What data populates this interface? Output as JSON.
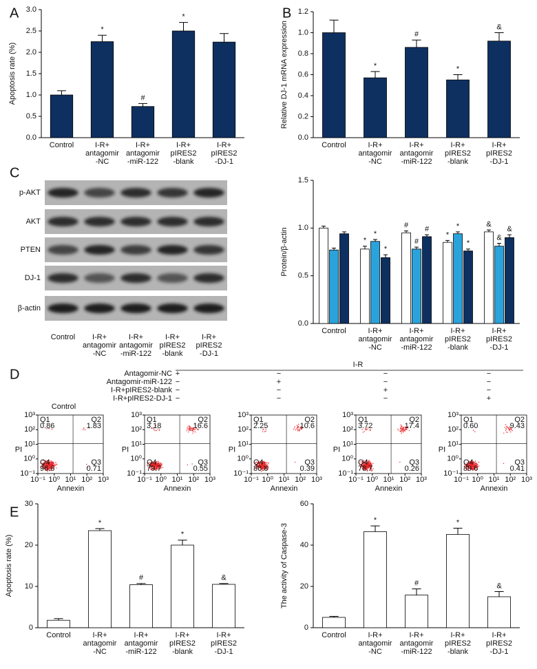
{
  "chart_data": [
    {
      "type": "bar",
      "panel_label": "A",
      "ylabel": "Apoptosis rate (%)",
      "categories": [
        "Control",
        "I-R+\nantagomir\n-NC",
        "I-R+\nantagomir\n-miR-122",
        "I-R+\npIRES2\n-blank",
        "I-R+\npIRES2\n-DJ-1"
      ],
      "values": [
        1.0,
        2.25,
        0.73,
        2.5,
        2.24
      ],
      "errors": [
        0.1,
        0.15,
        0.07,
        0.2,
        0.2
      ],
      "annotations": [
        null,
        "*",
        "#",
        "*",
        null
      ],
      "color": "#0e3060",
      "ylim": [
        0,
        3
      ],
      "yticks": [
        {
          "value": 0,
          "label": "0.0"
        },
        0.5,
        {
          "value": 1,
          "label": "1.0"
        },
        1.5,
        {
          "value": 2,
          "label": "2.0"
        },
        2.5,
        {
          "value": 3,
          "label": "3.0"
        }
      ]
    },
    {
      "type": "bar",
      "panel_label": "B",
      "ylabel": "Relative DJ-1 mRNA expression",
      "categories": [
        "Control",
        "I-R+\nantagomir\n-NC",
        "I-R+\nantagomir\n-miR-122",
        "I-R+\npIRES2\n-blank",
        "I-R+\npIRES2\n-DJ-1"
      ],
      "values": [
        1.0,
        0.57,
        0.86,
        0.55,
        0.92
      ],
      "errors": [
        0.12,
        0.06,
        0.07,
        0.05,
        0.08
      ],
      "annotations": [
        null,
        "*",
        "#",
        "*",
        "&"
      ],
      "color": "#0e3060",
      "ylim": [
        0,
        1.2
      ],
      "yticks": [
        {
          "value": 0,
          "label": "0.0"
        },
        0.2,
        0.4,
        0.6,
        0.8,
        {
          "value": 1,
          "label": "1.0"
        },
        1.2
      ]
    },
    {
      "type": "blot",
      "panel_label": "C",
      "rows": [
        "p-AKT",
        "AKT",
        "PTEN",
        "DJ-1",
        "β-actin"
      ],
      "categories": [
        "Control",
        "I-R+\nantagomir\n-NC",
        "I-R+\nantagomir\n-miR-122",
        "I-R+\npIRES2\n-blank",
        "I-R+\npIRES2\n-DJ-1"
      ]
    },
    {
      "type": "bar",
      "ylabel": "Protein/β-actin",
      "categories": [
        "Control",
        "I-R+\nantagomir\n-NC",
        "I-R+\nantagomir\n-miR-122",
        "I-R+\npIRES2\n-blank",
        "I-R+\npIRES2\n-DJ-1"
      ],
      "series": [
        {
          "color": "#ffffff",
          "values": [
            1.0,
            0.78,
            0.95,
            0.85,
            0.96
          ],
          "errors": [
            0.02,
            0.03,
            0.02,
            0.02,
            0.02
          ],
          "annotations": [
            null,
            "*",
            "#",
            "*",
            "&"
          ]
        },
        {
          "color": "#2aa3dc",
          "values": [
            0.77,
            0.86,
            0.78,
            0.94,
            0.81
          ],
          "errors": [
            0.02,
            0.02,
            0.02,
            0.02,
            0.03
          ],
          "annotations": [
            null,
            "*",
            "#",
            "*",
            "&"
          ]
        },
        {
          "color": "#0e3060",
          "values": [
            0.94,
            0.69,
            0.91,
            0.76,
            0.9
          ],
          "errors": [
            0.02,
            0.03,
            0.02,
            0.02,
            0.03
          ],
          "annotations": [
            null,
            "*",
            "#",
            "*",
            "&"
          ]
        }
      ],
      "ylim": [
        0,
        1.5
      ],
      "yticks": [
        {
          "value": 0,
          "label": "0.0"
        },
        0.5,
        {
          "value": 1,
          "label": "1.0"
        },
        1.5
      ]
    },
    {
      "type": "flow",
      "panel_label": "D",
      "log_scale": true,
      "treatment_group": "I-R",
      "treatments": [
        {
          "name": "Antagomir-NC",
          "marks": [
            "+",
            "−",
            "−",
            "−"
          ]
        },
        {
          "name": "Antagomir-miR-122",
          "marks": [
            "−",
            "+",
            "−",
            "−"
          ]
        },
        {
          "name": "I-R+pIRES2-blank",
          "marks": [
            "−",
            "−",
            "+",
            "−"
          ]
        },
        {
          "name": "I-R+pIRES2-DJ-1",
          "marks": [
            "−",
            "−",
            "−",
            "+"
          ]
        }
      ],
      "control_title": "Control",
      "xlabel": "Annexin",
      "ylabel": "PI",
      "quadrant_names": [
        "Q1",
        "Q2",
        "Q3",
        "Q4"
      ],
      "xlim": [
        0.1,
        1000
      ],
      "ylim": [
        0.1,
        1000
      ],
      "xticks": [
        {
          "value": 0.1,
          "label": "10⁻¹"
        },
        {
          "value": 1,
          "label": "10⁰"
        },
        {
          "value": 10,
          "label": "10¹"
        },
        {
          "value": 100,
          "label": "10²"
        },
        {
          "value": 1000,
          "label": "10³"
        }
      ],
      "yticks": [
        {
          "value": 0.1,
          "label": "10⁻¹"
        },
        {
          "value": 1,
          "label": "10⁰"
        },
        {
          "value": 10,
          "label": "10¹"
        },
        {
          "value": 100,
          "label": "10²"
        },
        {
          "value": 1000,
          "label": "10³"
        }
      ],
      "color": "#e8262a",
      "panels": [
        {
          "values": [
            0.86,
            1.83,
            0.71,
            96.6
          ]
        },
        {
          "values": [
            3.18,
            16.6,
            0.55,
            79.7
          ]
        },
        {
          "values": [
            2.25,
            10.6,
            0.39,
            86.8
          ]
        },
        {
          "values": [
            3.72,
            17.4,
            0.26,
            78.7
          ]
        },
        {
          "values": [
            0.6,
            9.43,
            0.41,
            89.6
          ],
          "value_labels": [
            "0.60",
            "9.43",
            "0.41",
            "89.6"
          ]
        }
      ]
    },
    {
      "type": "bar",
      "panel_label": "E",
      "ylabel": "Apoptosis rate (%)",
      "categories": [
        "Control",
        "I-R+\nantagomir\n-NC",
        "I-R+\nantagomir\n-miR-122",
        "I-R+\npIRES2\n-blank",
        "I-R+\npIRES2\n-DJ-1"
      ],
      "values": [
        1.8,
        23.5,
        10.4,
        20.0,
        10.5
      ],
      "errors": [
        0.4,
        0.5,
        0.3,
        1.2,
        0.2
      ],
      "annotations": [
        null,
        "*",
        "#",
        "*",
        "&"
      ],
      "color": "#ffffff",
      "ylim": [
        0,
        30
      ],
      "yticks": [
        0,
        10,
        20,
        30
      ]
    },
    {
      "type": "bar",
      "ylabel": "The activity of Caspase-3",
      "categories": [
        "Control",
        "I-R+\nantagomir\n-NC",
        "I-R+\nantagomir\n-miR-122",
        "I-R+\npIRES2\n-blank",
        "I-R+\npIRES2\n-DJ-1"
      ],
      "values": [
        5.0,
        46.5,
        15.8,
        45.2,
        15.0
      ],
      "errors": [
        0.5,
        2.8,
        3.0,
        3.0,
        2.5
      ],
      "annotations": [
        null,
        "*",
        "#",
        "*",
        "&"
      ],
      "color": "#ffffff",
      "ylim": [
        0,
        60
      ],
      "yticks": [
        0,
        20,
        40,
        60
      ]
    }
  ]
}
